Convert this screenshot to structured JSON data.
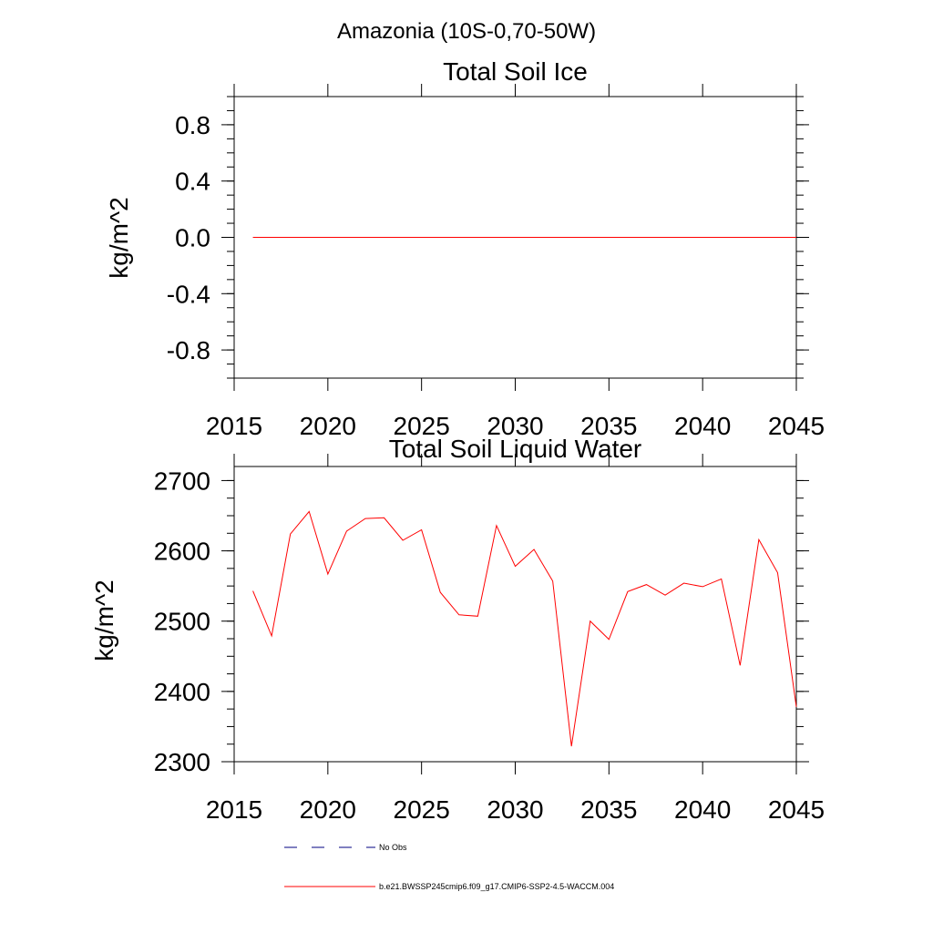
{
  "figure": {
    "title": "Amazonia (10S-0,70-50W)"
  },
  "chart_data": [
    {
      "type": "line",
      "title": "Total Soil Ice",
      "xlabel": "",
      "ylabel": "kg/m^2",
      "xlim": [
        2015,
        2045
      ],
      "ylim": [
        -1,
        1
      ],
      "x_ticks": [
        2015,
        2020,
        2025,
        2030,
        2035,
        2040,
        2045
      ],
      "x_tick_labels": [
        "2015",
        "2020",
        "2025",
        "2030",
        "2035",
        "2040",
        "2045"
      ],
      "y_ticks": [
        -0.8,
        -0.4,
        0.0,
        0.4,
        0.8
      ],
      "y_tick_labels": [
        "-0.8",
        "-0.4",
        "0.0",
        "0.4",
        "0.8"
      ],
      "grid": false,
      "x": [
        2016,
        2017,
        2018,
        2019,
        2020,
        2021,
        2022,
        2023,
        2024,
        2025,
        2026,
        2027,
        2028,
        2029,
        2030,
        2031,
        2032,
        2033,
        2034,
        2035,
        2036,
        2037,
        2038,
        2039,
        2040,
        2041,
        2042,
        2043,
        2044,
        2045
      ],
      "series": [
        {
          "name": "b.e21.BWSSP245cmip6.f09_g17.CMIP6-SSP2-4.5-WACCM.004",
          "color": "#ff0000",
          "values": [
            0,
            0,
            0,
            0,
            0,
            0,
            0,
            0,
            0,
            0,
            0,
            0,
            0,
            0,
            0,
            0,
            0,
            0,
            0,
            0,
            0,
            0,
            0,
            0,
            0,
            0,
            0,
            0,
            0,
            0
          ]
        }
      ]
    },
    {
      "type": "line",
      "title": "Total Soil Liquid Water",
      "xlabel": "",
      "ylabel": "kg/m^2",
      "xlim": [
        2015,
        2045
      ],
      "ylim": [
        2300,
        2720
      ],
      "x_ticks": [
        2015,
        2020,
        2025,
        2030,
        2035,
        2040,
        2045
      ],
      "x_tick_labels": [
        "2015",
        "2020",
        "2025",
        "2030",
        "2035",
        "2040",
        "2045"
      ],
      "y_ticks": [
        2300,
        2400,
        2500,
        2600,
        2700
      ],
      "y_tick_labels": [
        "2300",
        "2400",
        "2500",
        "2600",
        "2700"
      ],
      "grid": false,
      "x": [
        2016,
        2017,
        2018,
        2019,
        2020,
        2021,
        2022,
        2023,
        2024,
        2025,
        2026,
        2027,
        2028,
        2029,
        2030,
        2031,
        2032,
        2033,
        2034,
        2035,
        2036,
        2037,
        2038,
        2039,
        2040,
        2041,
        2042,
        2043,
        2044,
        2045
      ],
      "series": [
        {
          "name": "b.e21.BWSSP245cmip6.f09_g17.CMIP6-SSP2-4.5-WACCM.004",
          "color": "#ff0000",
          "values": [
            2543,
            2479,
            2624,
            2656,
            2567,
            2628,
            2646,
            2647,
            2615,
            2630,
            2541,
            2509,
            2507,
            2636,
            2578,
            2602,
            2557,
            2322,
            2500,
            2474,
            2542,
            2552,
            2537,
            2554,
            2549,
            2560,
            2437,
            2616,
            2569,
            2378
          ]
        }
      ]
    }
  ],
  "legend": {
    "placement": "bottom",
    "items": [
      {
        "label": "No Obs",
        "style": "dashed",
        "color": "#000080"
      },
      {
        "label": "b.e21.BWSSP245cmip6.f09_g17.CMIP6-SSP2-4.5-WACCM.004",
        "style": "solid",
        "color": "#ff0000"
      }
    ]
  }
}
